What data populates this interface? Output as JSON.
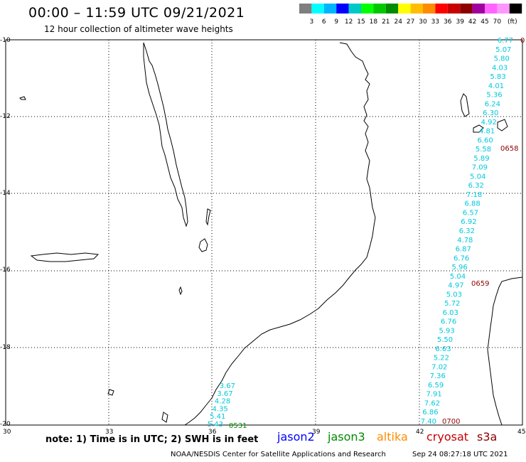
{
  "header": {
    "title": "00:00 – 11:59 UTC 09/21/2021",
    "subtitle": "12 hour collection of altimeter wave heights"
  },
  "scale": {
    "colors": [
      "#7f7f7f",
      "#00ffff",
      "#00b4ff",
      "#0000ff",
      "#00c8c8",
      "#00ff00",
      "#00c800",
      "#008c00",
      "#ffff00",
      "#ffbe00",
      "#ff8c00",
      "#ff0000",
      "#c80000",
      "#8c0000",
      "#a000a0",
      "#ff64ff",
      "#ff96ff",
      "#000000"
    ],
    "labels": [
      "3",
      "6",
      "9",
      "12",
      "15",
      "18",
      "21",
      "24",
      "27",
      "30",
      "33",
      "36",
      "39",
      "42",
      "45",
      "70",
      "(ft)"
    ]
  },
  "axes": {
    "lat_labels": [
      "-10",
      "-12",
      "-14",
      "-16",
      "-18",
      "-20"
    ],
    "lon_labels": [
      "30",
      "33",
      "36",
      "39",
      "42",
      "45"
    ]
  },
  "tracks": [
    {
      "name": "west-track",
      "color": "#00c8dc",
      "values": [
        "3.67",
        "3.67",
        "4.28",
        "4.35",
        "5.41",
        "5.43"
      ],
      "time_label": "0531",
      "time_color": "#008c00"
    },
    {
      "name": "east-track",
      "color": "#00c8dc",
      "values": [
        "6.77",
        "5.07",
        "5.80",
        "4.03",
        "5.83",
        "4.01",
        "5.36",
        "6.24",
        "6.30",
        "4.92",
        "4.81",
        "6.60",
        "5.58",
        "5.89",
        "7.09",
        "5.04",
        "6.32",
        "7.18",
        "6.88",
        "6.57",
        "6.92",
        "6.32",
        "4.78",
        "6.87",
        "6.76",
        "5.96",
        "5.04",
        "4.97",
        "5.03",
        "5.72",
        "6.03",
        "6.76",
        "5.93",
        "5.50",
        "6.63",
        "5.22",
        "7.02",
        "7.36",
        "6.59",
        "7.91",
        "7.62",
        "6.86",
        "7.40"
      ],
      "time_labels": [
        "0658",
        "0659",
        "0700"
      ],
      "time_color": "#8c0000"
    }
  ],
  "partial_label": "0",
  "footer": {
    "note": "note:  1) Time is in UTC; 2) SWH is in feet",
    "satellites": [
      {
        "name": "jason2",
        "color": "#0000ff"
      },
      {
        "name": "jason3",
        "color": "#008c00"
      },
      {
        "name": "altika",
        "color": "#ff8c00"
      },
      {
        "name": "cryosat",
        "color": "#c80000"
      },
      {
        "name": "s3a",
        "color": "#8c0000"
      }
    ],
    "credit": "NOAA/NESDIS Center for Satellite Applications and Research",
    "timestamp": "Sep 24 08:27:18 UTC 2021"
  }
}
